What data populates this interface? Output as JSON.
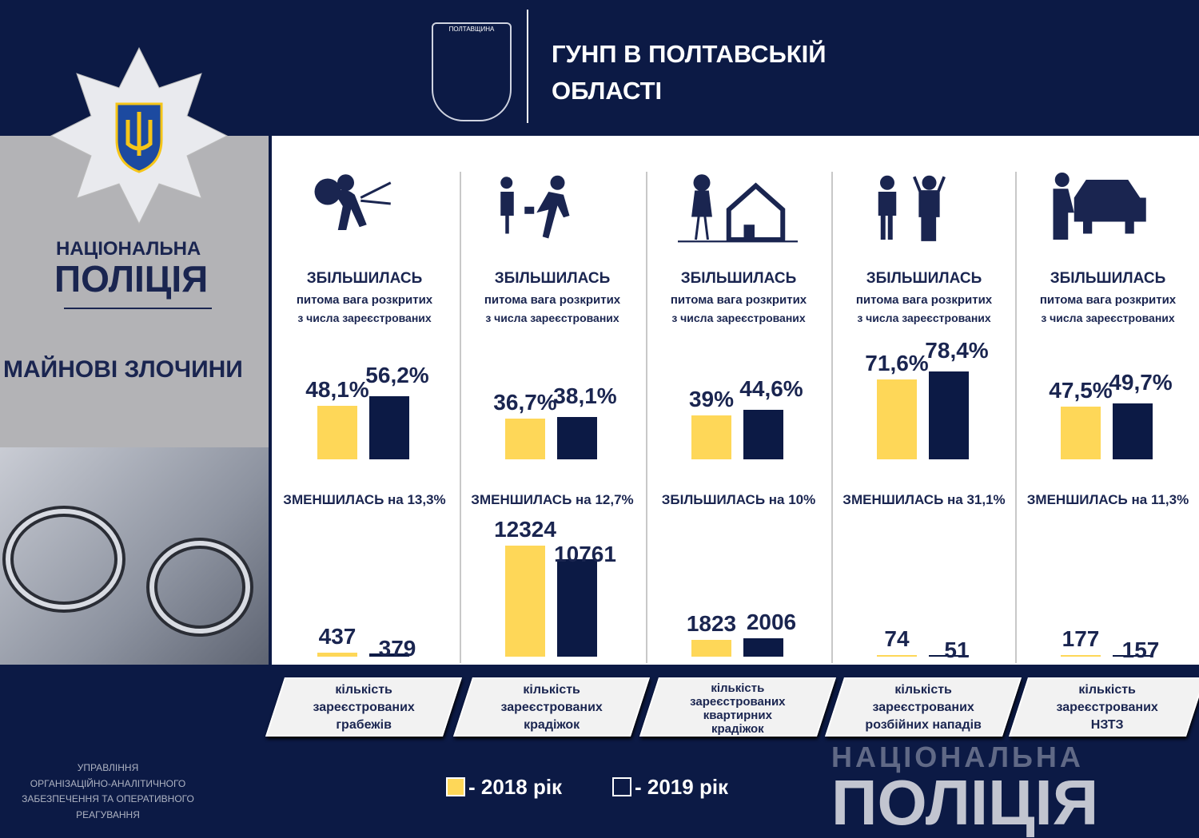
{
  "header": {
    "title_line1": "ГУНП В ПОЛТАВСЬКІЙ",
    "title_line2": "ОБЛАСТІ",
    "crest_text": "ПОЛТАВЩИНА"
  },
  "left": {
    "org_line1": "НАЦІОНАЛЬНА",
    "org_line2": "ПОЛІЦІЯ",
    "section_title": "МАЙНОВІ ЗЛОЧИНИ"
  },
  "colors": {
    "y2018": "#fed758",
    "y2019": "#0c1a45"
  },
  "chart_data": [
    {
      "type": "bar",
      "title": "ЗБІЛЬШИЛАСЬ",
      "subtitle1": "питома вага розкритих",
      "subtitle2": "з числа зареєстрованих",
      "series": [
        {
          "name": "2018 рік",
          "values": [
            48.1,
            36.7,
            39,
            71.6,
            47.5
          ],
          "labels": [
            "48,1%",
            "36,7%",
            "39%",
            "71,6%",
            "47,5%"
          ]
        },
        {
          "name": "2019 рік",
          "values": [
            56.2,
            38.1,
            44.6,
            78.4,
            49.7
          ],
          "labels": [
            "56,2%",
            "38,1%",
            "44,6%",
            "78,4%",
            "49,7%"
          ]
        }
      ]
    },
    {
      "type": "bar",
      "categories": [
        "кількість зареєстрованих грабежів",
        "кількість зареєстрованих крадіжок",
        "кількість зареєстрованих квартирних крадіжок",
        "кількість зареєстрованих розбійних нападів",
        "кількість зареєстрованих НЗТЗ"
      ],
      "series": [
        {
          "name": "2018 рік",
          "values": [
            437,
            12324,
            1823,
            74,
            177
          ]
        },
        {
          "name": "2019 рік",
          "values": [
            379,
            10761,
            2006,
            51,
            157
          ]
        }
      ],
      "changes": [
        "ЗМЕНШИЛАСЬ на 13,3%",
        "ЗМЕНШИЛАСЬ на 12,7%",
        "ЗБІЛЬШИЛАСЬ на 10%",
        "ЗМЕНШИЛАСЬ на 31,1%",
        "ЗМЕНШИЛАСЬ на 11,3%"
      ]
    }
  ],
  "categories": [
    [
      "кількість",
      "зареєстрованих",
      "грабежів"
    ],
    [
      "кількість",
      "зареєстрованих",
      "крадіжок"
    ],
    [
      "кількість",
      "зареєстрованих",
      "квартирних",
      "крадіжок"
    ],
    [
      "кількість",
      "зареєстрованих",
      "розбійних нападів"
    ],
    [
      "кількість",
      "зареєстрованих",
      "НЗТЗ"
    ]
  ],
  "legend": {
    "y2018": "- 2018 рік",
    "y2019": "- 2019 рік"
  },
  "footer": {
    "lines": [
      "УПРАВЛІННЯ",
      "ОРГАНІЗАЦІЙНО-АНАЛІТИЧНОГО",
      "ЗАБЕЗПЕЧЕННЯ ТА ОПЕРАТИВНОГО",
      "РЕАГУВАННЯ"
    ],
    "wm_top": "НАЦІОНАЛЬНА",
    "wm_bottom": "ПОЛІЦІЯ"
  }
}
